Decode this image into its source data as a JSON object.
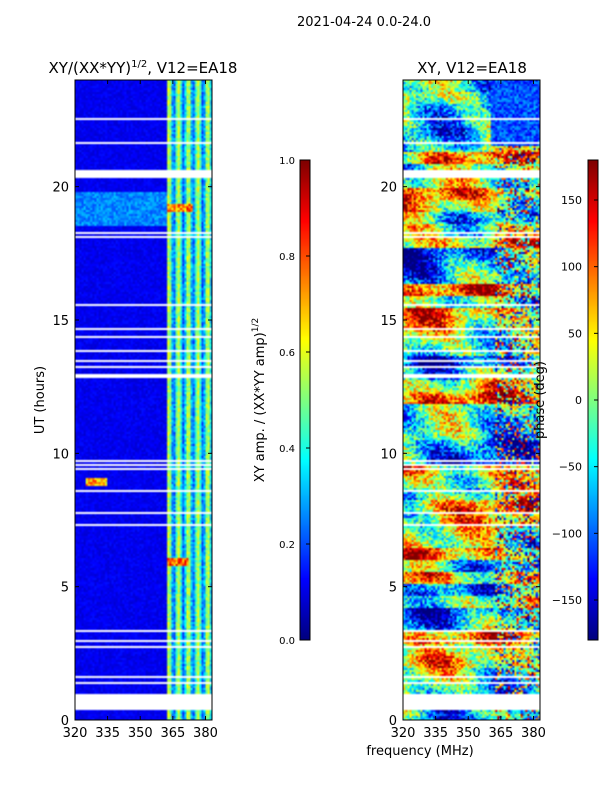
{
  "figure": {
    "suptitle": "2021-04-24 0.0-24.0",
    "shared_xlabel": "frequency (MHz)"
  },
  "chart_data": [
    {
      "type": "heatmap",
      "title": "XY/(XX*YY)",
      "title_exponent": "1/2",
      "title_suffix": ", V12=EA18",
      "xlabel": "frequency (MHz)",
      "ylabel": "UT (hours)",
      "xlim": [
        320,
        383
      ],
      "ylim": [
        0,
        24
      ],
      "xticks": [
        320,
        335,
        350,
        365,
        380
      ],
      "yticks": [
        0,
        5,
        10,
        15,
        20
      ],
      "colormap": "jet",
      "colorbar": {
        "label": "XY amp. / (XX*YY amp)",
        "label_exponent": "1/2",
        "range": [
          0.0,
          1.0
        ],
        "ticks": [
          "0.0",
          "0.2",
          "0.4",
          "0.6",
          "0.8",
          "1.0"
        ]
      },
      "description_values": {
        "background_level": 0.08,
        "band_start_mhz": 362,
        "band_level": 0.35,
        "hot_spots": [
          {
            "ut": 19.2,
            "freq": [
              362,
              374
            ],
            "level": 0.9
          },
          {
            "ut": 5.9,
            "freq": [
              362,
              372
            ],
            "level": 0.95
          },
          {
            "ut": 8.9,
            "freq": [
              325,
              335
            ],
            "level": 0.85
          }
        ]
      }
    },
    {
      "type": "heatmap",
      "title": "XY, V12=EA18",
      "xlabel": "frequency (MHz)",
      "ylabel": "",
      "xlim": [
        320,
        383
      ],
      "ylim": [
        0,
        24
      ],
      "xticks": [
        320,
        335,
        350,
        365,
        380
      ],
      "yticks": [
        0,
        5,
        10,
        15,
        20
      ],
      "colormap": "jet",
      "colorbar": {
        "label": "phase (deg)",
        "range": [
          -180,
          180
        ],
        "ticks": [
          "−150",
          "−100",
          "−50",
          "0",
          "50",
          "100",
          "150"
        ]
      }
    }
  ]
}
